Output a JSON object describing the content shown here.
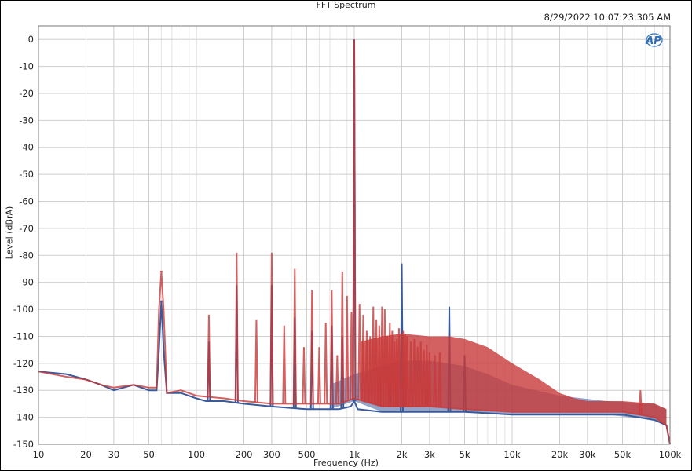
{
  "chart_data": {
    "type": "line",
    "title": "FFT Spectrum",
    "timestamp": "8/29/2022 10:07:23.305 AM",
    "xlabel": "Frequency (Hz)",
    "ylabel": "Level (dBrA)",
    "xscale": "log",
    "xlim": [
      10,
      100000
    ],
    "ylim": [
      -150,
      5
    ],
    "grid": true,
    "legend": "none",
    "logo": "AP",
    "x_ticks": [
      {
        "value": 10,
        "label": "10"
      },
      {
        "value": 20,
        "label": "20"
      },
      {
        "value": 30,
        "label": "30"
      },
      {
        "value": 50,
        "label": "50"
      },
      {
        "value": 100,
        "label": "100"
      },
      {
        "value": 200,
        "label": "200"
      },
      {
        "value": 300,
        "label": "300"
      },
      {
        "value": 500,
        "label": "500"
      },
      {
        "value": 1000,
        "label": "1k"
      },
      {
        "value": 2000,
        "label": "2k"
      },
      {
        "value": 3000,
        "label": "3k"
      },
      {
        "value": 5000,
        "label": "5k"
      },
      {
        "value": 10000,
        "label": "10k"
      },
      {
        "value": 20000,
        "label": "20k"
      },
      {
        "value": 30000,
        "label": "30k"
      },
      {
        "value": 50000,
        "label": "50k"
      },
      {
        "value": 100000,
        "label": "100k"
      }
    ],
    "y_ticks": [
      0,
      -10,
      -20,
      -30,
      -40,
      -50,
      -60,
      -70,
      -80,
      -90,
      -100,
      -110,
      -120,
      -130,
      -140,
      -150
    ],
    "series": [
      {
        "color": "#3a5a9a",
        "floor": [
          [
            10,
            -123
          ],
          [
            15,
            -124
          ],
          [
            20,
            -126
          ],
          [
            25,
            -128
          ],
          [
            30,
            -130
          ],
          [
            40,
            -128
          ],
          [
            50,
            -130
          ],
          [
            56,
            -130
          ],
          [
            58,
            -115
          ],
          [
            60,
            -97
          ],
          [
            62,
            -115
          ],
          [
            65,
            -131
          ],
          [
            80,
            -131
          ],
          [
            100,
            -133
          ],
          [
            115,
            -134
          ],
          [
            150,
            -134
          ],
          [
            200,
            -135
          ],
          [
            300,
            -136
          ],
          [
            500,
            -137
          ],
          [
            800,
            -137
          ],
          [
            950,
            -136
          ],
          [
            1000,
            -134
          ],
          [
            1050,
            -137
          ],
          [
            1500,
            -138
          ],
          [
            2000,
            -138
          ],
          [
            3000,
            -138
          ],
          [
            5000,
            -138
          ],
          [
            10000,
            -139
          ],
          [
            20000,
            -139
          ],
          [
            50000,
            -139
          ],
          [
            80000,
            -141
          ],
          [
            95000,
            -143
          ],
          [
            100000,
            -150
          ]
        ],
        "envelope": [
          [
            700,
            -128
          ],
          [
            1000,
            -124
          ],
          [
            1500,
            -121
          ],
          [
            2000,
            -119
          ],
          [
            3000,
            -119
          ],
          [
            5000,
            -121
          ],
          [
            7000,
            -124
          ],
          [
            10000,
            -128
          ],
          [
            20000,
            -132
          ],
          [
            40000,
            -134
          ],
          [
            80000,
            -135
          ],
          [
            95000,
            -137
          ]
        ],
        "peaks": [
          [
            60,
            -97
          ],
          [
            120,
            -112
          ],
          [
            180,
            -91
          ],
          [
            300,
            -91
          ],
          [
            420,
            -103
          ],
          [
            540,
            -108
          ],
          [
            720,
            -106
          ],
          [
            840,
            -110
          ],
          [
            1000,
            0
          ],
          [
            2000,
            -83
          ],
          [
            4000,
            -99
          ],
          [
            5000,
            -117
          ]
        ]
      },
      {
        "color": "#c83a3a",
        "floor": [
          [
            10,
            -123
          ],
          [
            15,
            -125
          ],
          [
            20,
            -126
          ],
          [
            25,
            -128
          ],
          [
            30,
            -129
          ],
          [
            40,
            -128
          ],
          [
            50,
            -129
          ],
          [
            56,
            -129
          ],
          [
            58,
            -100
          ],
          [
            60,
            -86
          ],
          [
            62,
            -100
          ],
          [
            65,
            -131
          ],
          [
            80,
            -130
          ],
          [
            100,
            -132
          ],
          [
            150,
            -133
          ],
          [
            200,
            -134
          ],
          [
            300,
            -135
          ],
          [
            500,
            -135
          ],
          [
            800,
            -135
          ],
          [
            1000,
            -133
          ],
          [
            1500,
            -136
          ],
          [
            2000,
            -136
          ],
          [
            3000,
            -136
          ],
          [
            5000,
            -137
          ],
          [
            10000,
            -138
          ],
          [
            20000,
            -138
          ],
          [
            50000,
            -138
          ],
          [
            80000,
            -140
          ],
          [
            95000,
            -143
          ],
          [
            100000,
            -150
          ]
        ],
        "envelope": [
          [
            1100,
            -112
          ],
          [
            1500,
            -110
          ],
          [
            2000,
            -109
          ],
          [
            3000,
            -110
          ],
          [
            4000,
            -110
          ],
          [
            5000,
            -111
          ],
          [
            7000,
            -114
          ],
          [
            10000,
            -120
          ],
          [
            15000,
            -126
          ],
          [
            20000,
            -131
          ],
          [
            25000,
            -133
          ],
          [
            30000,
            -134
          ],
          [
            50000,
            -134
          ],
          [
            80000,
            -135
          ],
          [
            95000,
            -137
          ]
        ],
        "peaks": [
          [
            60,
            -86
          ],
          [
            120,
            -102
          ],
          [
            180,
            -79
          ],
          [
            240,
            -104
          ],
          [
            300,
            -79
          ],
          [
            360,
            -106
          ],
          [
            420,
            -85
          ],
          [
            480,
            -114
          ],
          [
            540,
            -93
          ],
          [
            600,
            -114
          ],
          [
            660,
            -105
          ],
          [
            720,
            -93
          ],
          [
            780,
            -117
          ],
          [
            840,
            -86
          ],
          [
            900,
            -95
          ],
          [
            960,
            -101
          ],
          [
            1000,
            0
          ],
          [
            1080,
            -98
          ],
          [
            1140,
            -102
          ],
          [
            1200,
            -108
          ],
          [
            1260,
            -110
          ],
          [
            1320,
            -99
          ],
          [
            1380,
            -104
          ],
          [
            1440,
            -106
          ],
          [
            1500,
            -99
          ],
          [
            1560,
            -100
          ],
          [
            1620,
            -110
          ],
          [
            1680,
            -105
          ],
          [
            1740,
            -108
          ],
          [
            1800,
            -112
          ],
          [
            1860,
            -111
          ],
          [
            1920,
            -107
          ],
          [
            2040,
            -108
          ],
          [
            2100,
            -109
          ],
          [
            2160,
            -110
          ],
          [
            2280,
            -112
          ],
          [
            2400,
            -111
          ],
          [
            2520,
            -114
          ],
          [
            2640,
            -112
          ],
          [
            2760,
            -115
          ],
          [
            2880,
            -113
          ],
          [
            3000,
            -116
          ],
          [
            3240,
            -117
          ],
          [
            3480,
            -116
          ],
          [
            65000,
            -130
          ]
        ]
      }
    ]
  }
}
